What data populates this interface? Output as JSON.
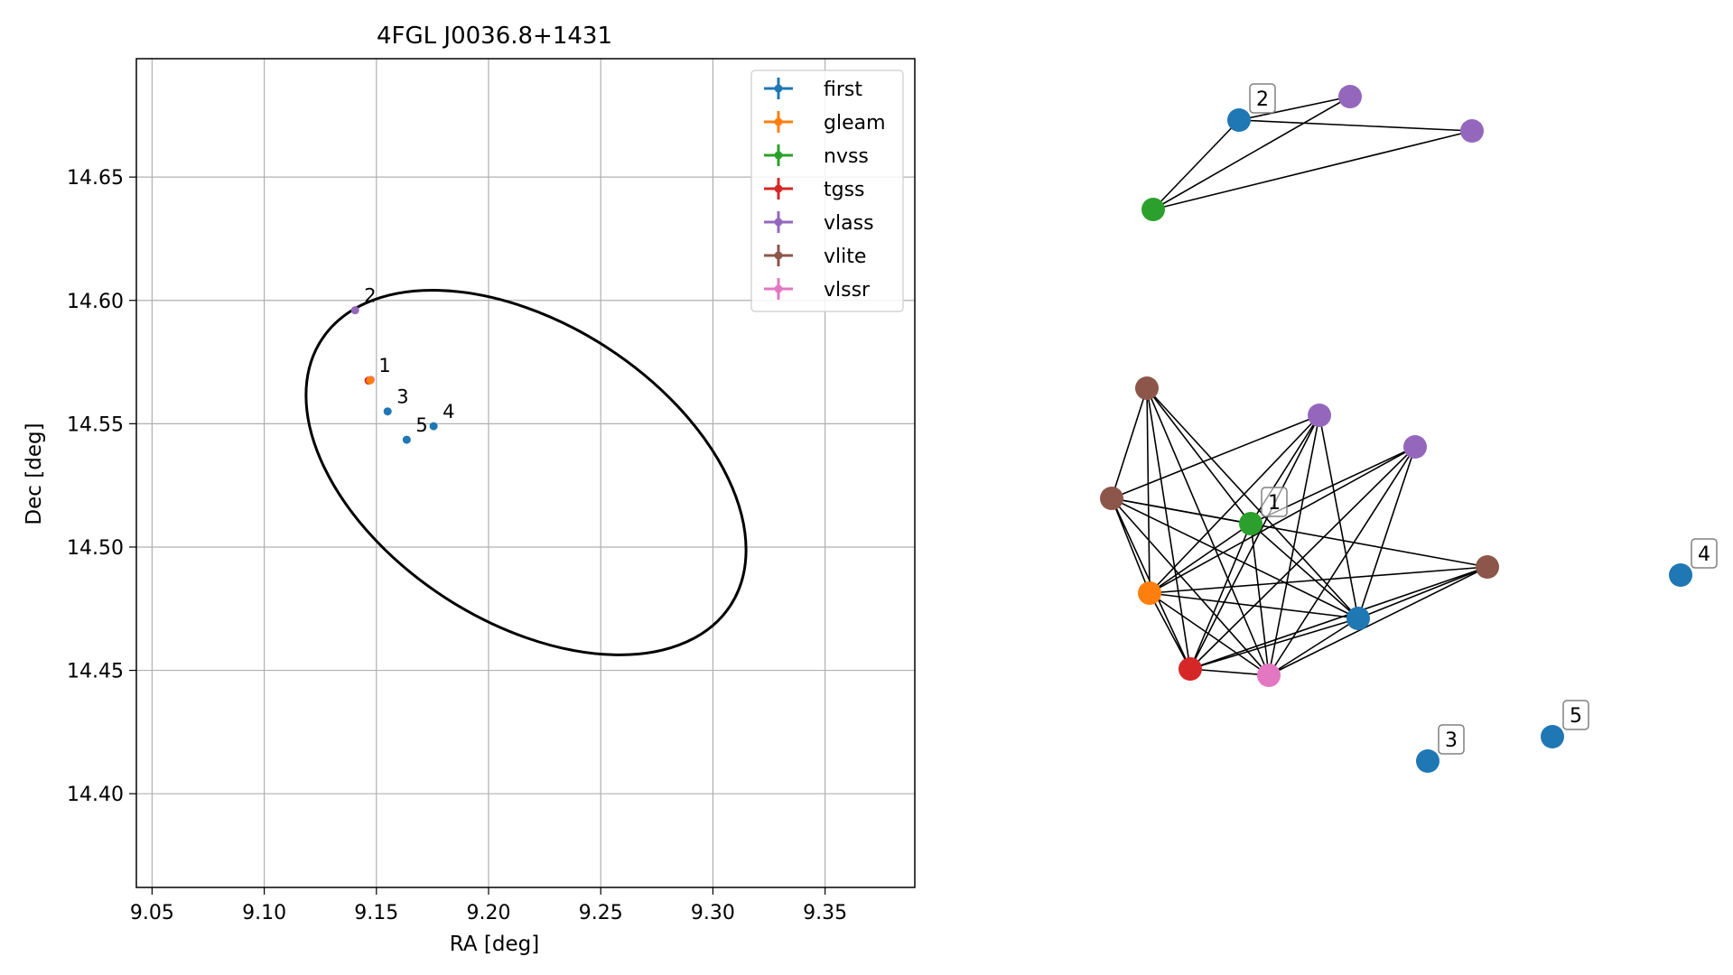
{
  "chart_data": [
    {
      "type": "scatter",
      "title": "4FGL J0036.8+1431",
      "xlabel": "RA [deg]",
      "ylabel": "Dec [deg]",
      "xlim": [
        9.043,
        9.39
      ],
      "ylim": [
        14.362,
        14.698
      ],
      "xticks": [
        9.05,
        9.1,
        9.15,
        9.2,
        9.25,
        9.3,
        9.35
      ],
      "xtick_labels": [
        "9.05",
        "9.10",
        "9.15",
        "9.20",
        "9.25",
        "9.30",
        "9.35"
      ],
      "yticks": [
        14.4,
        14.45,
        14.5,
        14.55,
        14.6,
        14.65
      ],
      "ytick_labels": [
        "14.40",
        "14.45",
        "14.50",
        "14.55",
        "14.60",
        "14.65"
      ],
      "grid": true,
      "legend_position": "top-right",
      "legend": [
        {
          "name": "first",
          "color": "#1f77b4"
        },
        {
          "name": "gleam",
          "color": "#ff7f0e"
        },
        {
          "name": "nvss",
          "color": "#2ca02c"
        },
        {
          "name": "tgss",
          "color": "#d62728"
        },
        {
          "name": "vlass",
          "color": "#9467bd"
        },
        {
          "name": "vlite",
          "color": "#8c564b"
        },
        {
          "name": "vlssr",
          "color": "#e377c2"
        }
      ],
      "points": [
        {
          "x": 9.1465,
          "y": 14.5675,
          "color": "#d62728"
        },
        {
          "x": 9.1475,
          "y": 14.5678,
          "color": "#e377c2"
        },
        {
          "x": 9.1472,
          "y": 14.5676,
          "color": "#ff7f0e"
        },
        {
          "x": 9.1405,
          "y": 14.596,
          "color": "#9467bd"
        },
        {
          "x": 9.155,
          "y": 14.555,
          "color": "#1f77b4"
        },
        {
          "x": 9.1755,
          "y": 14.549,
          "color": "#1f77b4"
        },
        {
          "x": 9.1635,
          "y": 14.5435,
          "color": "#1f77b4"
        }
      ],
      "annotations": [
        {
          "text": "2",
          "x": 9.1405,
          "y": 14.596
        },
        {
          "text": "1",
          "x": 9.147,
          "y": 14.5677
        },
        {
          "text": "3",
          "x": 9.155,
          "y": 14.555
        },
        {
          "text": "4",
          "x": 9.1755,
          "y": 14.549
        },
        {
          "text": "5",
          "x": 9.1635,
          "y": 14.5435
        }
      ],
      "ellipse": {
        "center_ra": 9.2167,
        "center_dec": 14.5302,
        "color": "#000000"
      }
    },
    {
      "type": "network",
      "nodes": [
        {
          "id": "f1",
          "color": "#1f77b4"
        },
        {
          "id": "v1",
          "color": "#9467bd"
        },
        {
          "id": "v2",
          "color": "#9467bd"
        },
        {
          "id": "n1",
          "color": "#2ca02c"
        },
        {
          "id": "l1",
          "color": "#8c564b"
        },
        {
          "id": "l2",
          "color": "#8c564b"
        },
        {
          "id": "l3",
          "color": "#8c564b"
        },
        {
          "id": "v3",
          "color": "#9467bd"
        },
        {
          "id": "v4",
          "color": "#9467bd"
        },
        {
          "id": "n2",
          "color": "#2ca02c"
        },
        {
          "id": "g1",
          "color": "#ff7f0e"
        },
        {
          "id": "f2",
          "color": "#1f77b4"
        },
        {
          "id": "t1",
          "color": "#d62728"
        },
        {
          "id": "s1",
          "color": "#e377c2"
        },
        {
          "id": "f3",
          "color": "#1f77b4"
        },
        {
          "id": "f4",
          "color": "#1f77b4"
        },
        {
          "id": "f5",
          "color": "#1f77b4"
        }
      ],
      "edges": [
        [
          "f1",
          "v1"
        ],
        [
          "f1",
          "v2"
        ],
        [
          "f1",
          "n1"
        ],
        [
          "n1",
          "v1"
        ],
        [
          "n1",
          "v2"
        ],
        [
          "l1",
          "l2"
        ],
        [
          "l1",
          "g1"
        ],
        [
          "l1",
          "n2"
        ],
        [
          "l1",
          "f2"
        ],
        [
          "l1",
          "t1"
        ],
        [
          "l1",
          "s1"
        ],
        [
          "l2",
          "n2"
        ],
        [
          "l2",
          "g1"
        ],
        [
          "l2",
          "t1"
        ],
        [
          "l2",
          "s1"
        ],
        [
          "l2",
          "l3"
        ],
        [
          "l2",
          "f2"
        ],
        [
          "l2",
          "v3"
        ],
        [
          "v3",
          "g1"
        ],
        [
          "v3",
          "t1"
        ],
        [
          "v3",
          "s1"
        ],
        [
          "v3",
          "f2"
        ],
        [
          "v3",
          "n2"
        ],
        [
          "v4",
          "g1"
        ],
        [
          "v4",
          "t1"
        ],
        [
          "v4",
          "s1"
        ],
        [
          "v4",
          "f2"
        ],
        [
          "v4",
          "n2"
        ],
        [
          "n2",
          "g1"
        ],
        [
          "n2",
          "t1"
        ],
        [
          "n2",
          "s1"
        ],
        [
          "n2",
          "f2"
        ],
        [
          "g1",
          "t1"
        ],
        [
          "g1",
          "s1"
        ],
        [
          "g1",
          "f2"
        ],
        [
          "g1",
          "l3"
        ],
        [
          "t1",
          "s1"
        ],
        [
          "t1",
          "f2"
        ],
        [
          "t1",
          "l3"
        ],
        [
          "s1",
          "f2"
        ],
        [
          "s1",
          "l3"
        ],
        [
          "f2",
          "l3"
        ]
      ],
      "labels": [
        {
          "node": "f1",
          "text": "2"
        },
        {
          "node": "n2",
          "text": "1"
        },
        {
          "node": "f5",
          "text": "4"
        },
        {
          "node": "f4",
          "text": "5"
        },
        {
          "node": "f3",
          "text": "3"
        }
      ]
    }
  ]
}
